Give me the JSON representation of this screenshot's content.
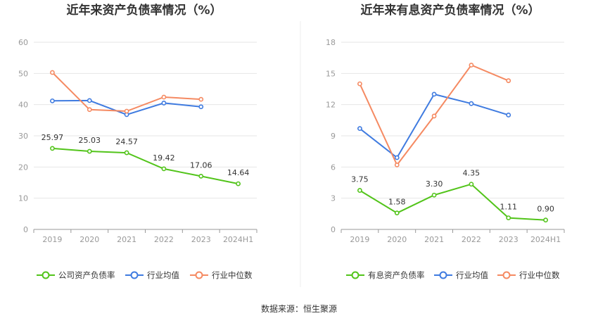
{
  "source": "数据来源：恒生聚源",
  "colors": {
    "company": "#52c41a",
    "avg": "#3f7be0",
    "median": "#f58a62"
  },
  "chart_data": [
    {
      "type": "line",
      "title": "近年来资产负债率情况（%）",
      "categories": [
        "2019",
        "2020",
        "2021",
        "2022",
        "2023",
        "2024H1"
      ],
      "ylim": [
        0,
        60
      ],
      "yticks": [
        0,
        10,
        20,
        30,
        40,
        50,
        60
      ],
      "grid": true,
      "legend": "bottom",
      "series": [
        {
          "key": "company",
          "name": "公司资产负债率",
          "values": [
            25.97,
            25.03,
            24.57,
            19.42,
            17.06,
            14.64
          ],
          "labels": [
            "25.97",
            "25.03",
            "24.57",
            "19.42",
            "17.06",
            "14.64"
          ]
        },
        {
          "key": "avg",
          "name": "行业均值",
          "values": [
            41.2,
            41.3,
            36.8,
            40.5,
            39.3,
            null
          ]
        },
        {
          "key": "median",
          "name": "行业中位数",
          "values": [
            50.3,
            38.4,
            37.9,
            42.4,
            41.7,
            null
          ]
        }
      ]
    },
    {
      "type": "line",
      "title": "近年来有息资产负债率情况（%）",
      "categories": [
        "2019",
        "2020",
        "2021",
        "2022",
        "2023",
        "2024H1"
      ],
      "ylim": [
        0,
        18
      ],
      "yticks": [
        0,
        3,
        6,
        9,
        12,
        15,
        18
      ],
      "grid": true,
      "legend": "bottom",
      "series": [
        {
          "key": "company",
          "name": "有息资产负债率",
          "values": [
            3.75,
            1.58,
            3.3,
            4.35,
            1.11,
            0.9
          ],
          "labels": [
            "3.75",
            "1.58",
            "3.30",
            "4.35",
            "1.11",
            "0.90"
          ]
        },
        {
          "key": "avg",
          "name": "行业均值",
          "values": [
            9.7,
            6.9,
            13.0,
            12.1,
            11.0,
            null
          ]
        },
        {
          "key": "median",
          "name": "行业中位数",
          "values": [
            14.0,
            6.2,
            10.9,
            15.8,
            14.3,
            null
          ]
        }
      ]
    }
  ]
}
